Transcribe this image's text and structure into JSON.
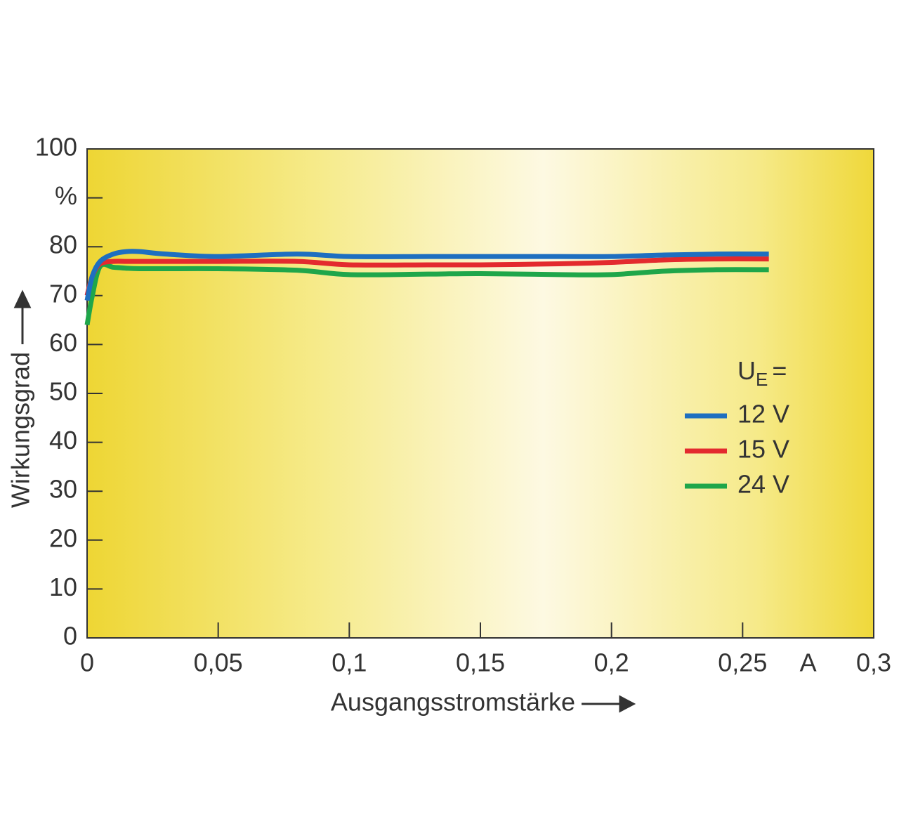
{
  "chart_data": {
    "type": "line",
    "x_label": "Ausgangsstromstärke",
    "y_label": "Wirkungsgrad",
    "x_unit": "A",
    "legend_title": {
      "main": "U",
      "sub": "E",
      "suffix": "="
    },
    "xlim": [
      0,
      0.3
    ],
    "ylim": [
      0,
      100
    ],
    "xticks": [
      0,
      {
        "value": 0.05,
        "label": "0,05"
      },
      {
        "value": 0.1,
        "label": "0,1"
      },
      {
        "value": 0.15,
        "label": "0,15"
      },
      {
        "value": 0.2,
        "label": "0,2"
      },
      {
        "value": 0.25,
        "label": "0,25"
      },
      {
        "value": 0.3,
        "label": "0,3"
      }
    ],
    "yticks": [
      0,
      10,
      20,
      30,
      40,
      50,
      60,
      70,
      80,
      {
        "value": 90,
        "label": "%"
      },
      100
    ],
    "x": [
      0,
      0.002,
      0.005,
      0.01,
      0.015,
      0.02,
      0.03,
      0.05,
      0.08,
      0.1,
      0.13,
      0.15,
      0.18,
      0.2,
      0.22,
      0.24,
      0.26
    ],
    "series": [
      {
        "name": "12 V",
        "color": "#1e6fc0",
        "values": [
          69,
          74,
          77,
          78.5,
          79,
          79,
          78.5,
          78,
          78.5,
          78,
          78,
          78,
          78,
          78,
          78.3,
          78.5,
          78.5
        ]
      },
      {
        "name": "15 V",
        "color": "#e32a2e",
        "values": [
          70,
          74,
          76.5,
          77,
          77,
          77,
          77,
          77,
          77,
          76.3,
          76.3,
          76.3,
          76.5,
          76.8,
          77.3,
          77.5,
          77.5
        ]
      },
      {
        "name": "24 V",
        "color": "#1fa64a",
        "values": [
          64,
          70,
          76,
          75.8,
          75.6,
          75.5,
          75.5,
          75.5,
          75.2,
          74.3,
          74.4,
          74.5,
          74.3,
          74.3,
          75,
          75.3,
          75.3
        ]
      }
    ]
  }
}
